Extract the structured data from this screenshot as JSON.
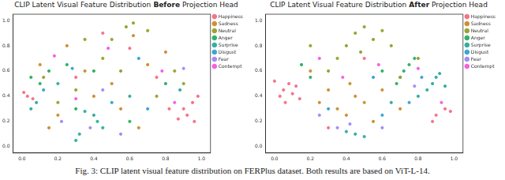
{
  "chart_data": [
    {
      "type": "scatter",
      "title": "CLIP Latent Visual Feature Distribution Before Projection Head",
      "xlim": [
        -0.05,
        1.05
      ],
      "ylim": [
        -0.05,
        1.05
      ],
      "xticks": [
        {
          "value": 0,
          "label": "0.0"
        },
        {
          "value": 0.2,
          "label": "0.2"
        },
        {
          "value": 0.4,
          "label": "0.4"
        },
        {
          "value": 0.6,
          "label": "0.6"
        },
        {
          "value": 0.8,
          "label": "0.8"
        },
        {
          "value": 1,
          "label": "1.0"
        }
      ],
      "yticks": [
        {
          "value": 0,
          "label": "0.0"
        },
        {
          "value": 0.2,
          "label": "0.2"
        },
        {
          "value": 0.4,
          "label": "0.4"
        },
        {
          "value": 0.6,
          "label": "0.6"
        },
        {
          "value": 0.8,
          "label": "0.8"
        },
        {
          "value": 1,
          "label": "1.0"
        }
      ],
      "grid": false,
      "legend": "right",
      "marker": "circle",
      "series": [
        {
          "name": "Happiness",
          "color": "#f77189",
          "values": [
            [
              0.9,
              0.3
            ],
            [
              0.95,
              0.35
            ],
            [
              0.92,
              0.25
            ],
            [
              0.98,
              0.4
            ],
            [
              0.87,
              0.22
            ],
            [
              0.03,
              0.4
            ],
            [
              0.06,
              0.38
            ],
            [
              0.01,
              0.43
            ],
            [
              0.75,
              0.55
            ],
            [
              0.6,
              0.78
            ],
            [
              0.3,
              0.55
            ],
            [
              0.82,
              0.3
            ],
            [
              0.96,
              0.2
            ],
            [
              0.45,
              0.9
            ]
          ]
        },
        {
          "name": "Sadness",
          "color": "#ce9032",
          "values": [
            [
              0.35,
              0.6
            ],
            [
              0.5,
              0.5
            ],
            [
              0.62,
              0.88
            ],
            [
              0.2,
              0.25
            ],
            [
              0.7,
              0.65
            ],
            [
              0.15,
              0.15
            ],
            [
              0.55,
              0.3
            ],
            [
              0.8,
              0.75
            ],
            [
              0.4,
              0.4
            ],
            [
              0.25,
              0.8
            ],
            [
              0.65,
              0.15
            ],
            [
              0.1,
              0.65
            ]
          ]
        },
        {
          "name": "Neutral",
          "color": "#97a431",
          "values": [
            [
              0.58,
              0.95
            ],
            [
              0.62,
              0.98
            ],
            [
              0.5,
              0.85
            ],
            [
              0.7,
              0.92
            ],
            [
              0.45,
              0.7
            ],
            [
              0.3,
              0.45
            ],
            [
              0.75,
              0.4
            ],
            [
              0.85,
              0.6
            ],
            [
              0.2,
              0.35
            ],
            [
              0.55,
              0.6
            ],
            [
              0.35,
              0.85
            ],
            [
              0.9,
              0.5
            ],
            [
              0.12,
              0.55
            ]
          ]
        },
        {
          "name": "Anger",
          "color": "#32b166",
          "values": [
            [
              0.1,
              0.5
            ],
            [
              0.15,
              0.6
            ],
            [
              0.25,
              0.65
            ],
            [
              0.05,
              0.55
            ],
            [
              0.4,
              0.6
            ],
            [
              0.6,
              0.2
            ],
            [
              0.8,
              0.5
            ],
            [
              0.3,
              0.3
            ]
          ]
        },
        {
          "name": "Surprise",
          "color": "#36ada4",
          "values": [
            [
              0.4,
              0.25
            ],
            [
              0.42,
              0.2
            ],
            [
              0.35,
              0.28
            ],
            [
              0.3,
              0.05
            ],
            [
              0.32,
              0.1
            ],
            [
              0.05,
              0.3
            ],
            [
              0.08,
              0.35
            ],
            [
              0.45,
              0.15
            ],
            [
              0.6,
              0.4
            ],
            [
              0.2,
              0.5
            ],
            [
              0.88,
              0.45
            ]
          ]
        },
        {
          "name": "Disgust",
          "color": "#39a7d0",
          "values": [
            [
              0.12,
              0.45
            ],
            [
              0.5,
              0.35
            ],
            [
              0.28,
              0.62
            ],
            [
              0.7,
              0.3
            ],
            [
              0.65,
              0.7
            ]
          ]
        },
        {
          "name": "Fear",
          "color": "#a48cf4",
          "values": [
            [
              0.38,
              0.15
            ],
            [
              0.22,
              0.2
            ],
            [
              0.45,
              0.45
            ],
            [
              0.9,
              0.62
            ],
            [
              0.55,
              0.1
            ]
          ]
        },
        {
          "name": "Contempt",
          "color": "#f561dd",
          "values": [
            [
              0.78,
              0.6
            ],
            [
              0.18,
              0.72
            ],
            [
              0.48,
              0.78
            ],
            [
              0.85,
              0.35
            ],
            [
              0.3,
              0.38
            ]
          ]
        }
      ]
    },
    {
      "type": "scatter",
      "title": "CLIP Latent Visual Feature Distribution After Projection Head",
      "xlim": [
        -0.05,
        1.05
      ],
      "ylim": [
        -0.05,
        1.05
      ],
      "xticks": [
        {
          "value": 0,
          "label": "0.0"
        },
        {
          "value": 0.2,
          "label": "0.2"
        },
        {
          "value": 0.4,
          "label": "0.4"
        },
        {
          "value": 0.6,
          "label": "0.6"
        },
        {
          "value": 0.8,
          "label": "0.8"
        },
        {
          "value": 1,
          "label": "1.0"
        }
      ],
      "yticks": [
        {
          "value": 0,
          "label": "0.0"
        },
        {
          "value": 0.2,
          "label": "0.2"
        },
        {
          "value": 0.4,
          "label": "0.4"
        },
        {
          "value": 0.6,
          "label": "0.6"
        },
        {
          "value": 0.8,
          "label": "0.8"
        },
        {
          "value": 1,
          "label": "1.0"
        }
      ],
      "grid": false,
      "legend": "right",
      "marker": "circle",
      "series": [
        {
          "name": "Happiness",
          "color": "#f77189",
          "values": [
            [
              0.05,
              0.45
            ],
            [
              0.08,
              0.5
            ],
            [
              0.03,
              0.4
            ],
            [
              0.1,
              0.42
            ],
            [
              0.12,
              0.48
            ],
            [
              0.06,
              0.35
            ],
            [
              0.0,
              0.52
            ],
            [
              0.14,
              0.38
            ],
            [
              0.9,
              0.25
            ],
            [
              0.95,
              0.3
            ],
            [
              0.88,
              0.2
            ],
            [
              0.98,
              0.28
            ],
            [
              0.5,
              0.7
            ],
            [
              0.3,
              0.15
            ]
          ]
        },
        {
          "name": "Sadness",
          "color": "#ce9032",
          "values": [
            [
              0.35,
              0.3
            ],
            [
              0.4,
              0.25
            ],
            [
              0.45,
              0.4
            ],
            [
              0.3,
              0.45
            ],
            [
              0.5,
              0.35
            ],
            [
              0.25,
              0.35
            ],
            [
              0.42,
              0.5
            ],
            [
              0.6,
              0.45
            ],
            [
              0.2,
              0.6
            ],
            [
              0.55,
              0.2
            ],
            [
              0.7,
              0.3
            ]
          ]
        },
        {
          "name": "Neutral",
          "color": "#97a431",
          "values": [
            [
              0.45,
              0.9
            ],
            [
              0.5,
              0.95
            ],
            [
              0.55,
              0.85
            ],
            [
              0.4,
              0.8
            ],
            [
              0.6,
              0.92
            ],
            [
              0.48,
              0.75
            ],
            [
              0.35,
              0.7
            ],
            [
              0.65,
              0.8
            ],
            [
              0.3,
              0.6
            ],
            [
              0.7,
              0.55
            ],
            [
              0.2,
              0.8
            ],
            [
              0.8,
              0.7
            ]
          ]
        },
        {
          "name": "Anger",
          "color": "#32b166",
          "values": [
            [
              0.72,
              0.6
            ],
            [
              0.75,
              0.65
            ],
            [
              0.7,
              0.55
            ],
            [
              0.78,
              0.7
            ],
            [
              0.68,
              0.5
            ],
            [
              0.2,
              0.55
            ],
            [
              0.15,
              0.65
            ],
            [
              0.6,
              0.6
            ]
          ]
        },
        {
          "name": "Surprise",
          "color": "#36ada4",
          "values": [
            [
              0.88,
              0.5
            ],
            [
              0.9,
              0.55
            ],
            [
              0.85,
              0.45
            ],
            [
              0.92,
              0.58
            ],
            [
              0.95,
              0.48
            ],
            [
              0.45,
              0.1
            ],
            [
              0.5,
              0.08
            ],
            [
              0.4,
              0.12
            ],
            [
              0.8,
              0.4
            ],
            [
              0.65,
              0.35
            ]
          ]
        },
        {
          "name": "Disgust",
          "color": "#39a7d0",
          "values": [
            [
              0.82,
              0.55
            ],
            [
              0.6,
              0.25
            ],
            [
              0.3,
              0.3
            ],
            [
              0.75,
              0.35
            ],
            [
              0.55,
              0.55
            ]
          ]
        },
        {
          "name": "Fear",
          "color": "#a48cf4",
          "values": [
            [
              0.35,
              0.15
            ],
            [
              0.42,
              0.18
            ],
            [
              0.78,
              0.48
            ],
            [
              0.6,
              0.15
            ],
            [
              0.25,
              0.25
            ]
          ]
        },
        {
          "name": "Contempt",
          "color": "#f561dd",
          "values": [
            [
              0.8,
              0.62
            ],
            [
              0.25,
              0.7
            ],
            [
              0.58,
              0.65
            ],
            [
              0.93,
              0.35
            ],
            [
              0.38,
              0.55
            ]
          ]
        }
      ]
    }
  ],
  "caption": "Fig. 3: CLIP latent visual feature distribution on FERPlus dataset. Both results are based on ViT-L-14."
}
